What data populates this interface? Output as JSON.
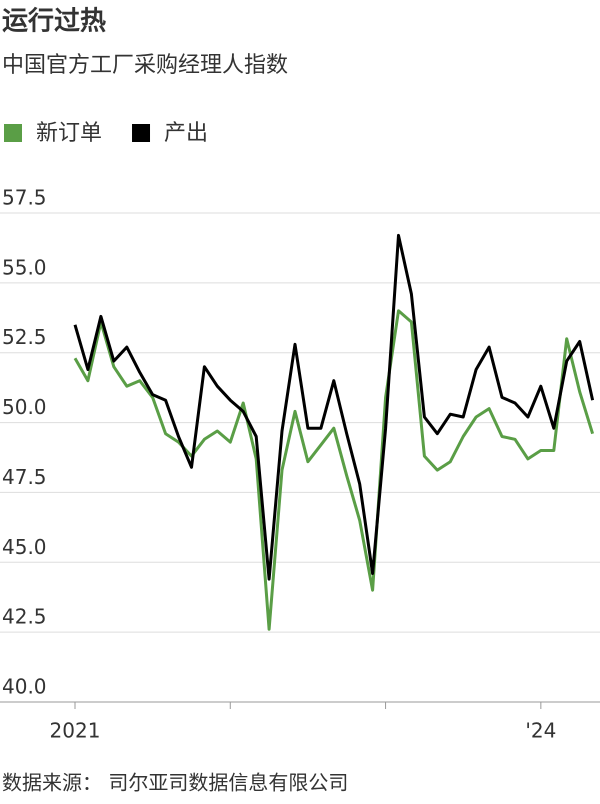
{
  "chart_data": {
    "type": "line",
    "title": "运行过热",
    "subtitle": "中国官方工厂采购经理人指数",
    "source": "数据来源： 司尔亚司数据信息有限公司",
    "categories": [
      "2021",
      null,
      null,
      null,
      null,
      null,
      null,
      null,
      null,
      null,
      null,
      null,
      null,
      null,
      null,
      null,
      null,
      null,
      null,
      null,
      null,
      null,
      null,
      null,
      null,
      null,
      null,
      null,
      null,
      null,
      null,
      null,
      null,
      null,
      null,
      null,
      "'24",
      null,
      null,
      null,
      null
    ],
    "series": [
      {
        "name": "新订单",
        "color": "#5a9e46",
        "values": [
          52.3,
          51.5,
          53.6,
          52.0,
          51.3,
          51.5,
          50.9,
          49.6,
          49.3,
          48.8,
          49.4,
          49.7,
          49.3,
          50.7,
          48.7,
          42.6,
          48.3,
          50.4,
          48.6,
          49.2,
          49.8,
          48.1,
          46.5,
          44.0,
          50.9,
          54.0,
          53.6,
          48.8,
          48.3,
          48.6,
          49.5,
          50.2,
          50.5,
          49.5,
          49.4,
          48.7,
          49.0,
          49.0,
          53.0,
          51.1,
          49.6
        ]
      },
      {
        "name": "产出",
        "color": "#000000",
        "values": [
          53.5,
          51.9,
          53.8,
          52.2,
          52.7,
          51.8,
          51.0,
          50.8,
          49.5,
          48.4,
          52.0,
          51.3,
          50.8,
          50.4,
          49.5,
          44.4,
          49.7,
          52.8,
          49.8,
          49.8,
          51.5,
          49.6,
          47.8,
          44.6,
          49.8,
          56.7,
          54.6,
          50.2,
          49.6,
          50.3,
          50.2,
          51.9,
          52.7,
          50.9,
          50.7,
          50.2,
          51.3,
          49.8,
          52.2,
          52.9,
          50.8
        ]
      }
    ],
    "ylim": [
      40,
      57.5
    ],
    "yticks": [
      {
        "value": 40,
        "label": "40.0"
      },
      {
        "value": 42.5,
        "label": "42.5"
      },
      {
        "value": 45,
        "label": "45.0"
      },
      {
        "value": 47.5,
        "label": "47.5"
      },
      {
        "value": 50,
        "label": "50.0"
      },
      {
        "value": 52.5,
        "label": "52.5"
      },
      {
        "value": 55,
        "label": "55.0"
      },
      {
        "value": 57.5,
        "label": "57.5"
      }
    ],
    "grid": true
  }
}
